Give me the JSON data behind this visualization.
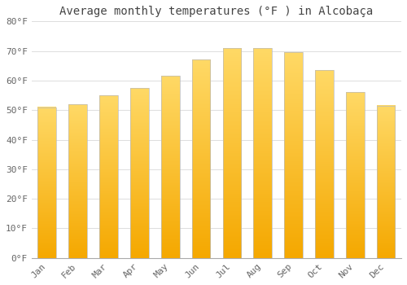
{
  "title": "Average monthly temperatures (°F ) in Alcobaça",
  "months": [
    "Jan",
    "Feb",
    "Mar",
    "Apr",
    "May",
    "Jun",
    "Jul",
    "Aug",
    "Sep",
    "Oct",
    "Nov",
    "Dec"
  ],
  "values": [
    51,
    52,
    55,
    57.5,
    61.5,
    67,
    71,
    71,
    69.5,
    63.5,
    56,
    51.5
  ],
  "color_bottom": "#F5A800",
  "color_top": "#FFD966",
  "bar_edge_color": "#BBBBBB",
  "ylim": [
    0,
    80
  ],
  "yticks": [
    0,
    10,
    20,
    30,
    40,
    50,
    60,
    70,
    80
  ],
  "ytick_labels": [
    "0°F",
    "10°F",
    "20°F",
    "30°F",
    "40°F",
    "50°F",
    "60°F",
    "70°F",
    "80°F"
  ],
  "background_color": "#FFFFFF",
  "grid_color": "#DDDDDD",
  "title_fontsize": 10,
  "tick_fontsize": 8,
  "tick_color": "#666666",
  "bar_width": 0.6
}
